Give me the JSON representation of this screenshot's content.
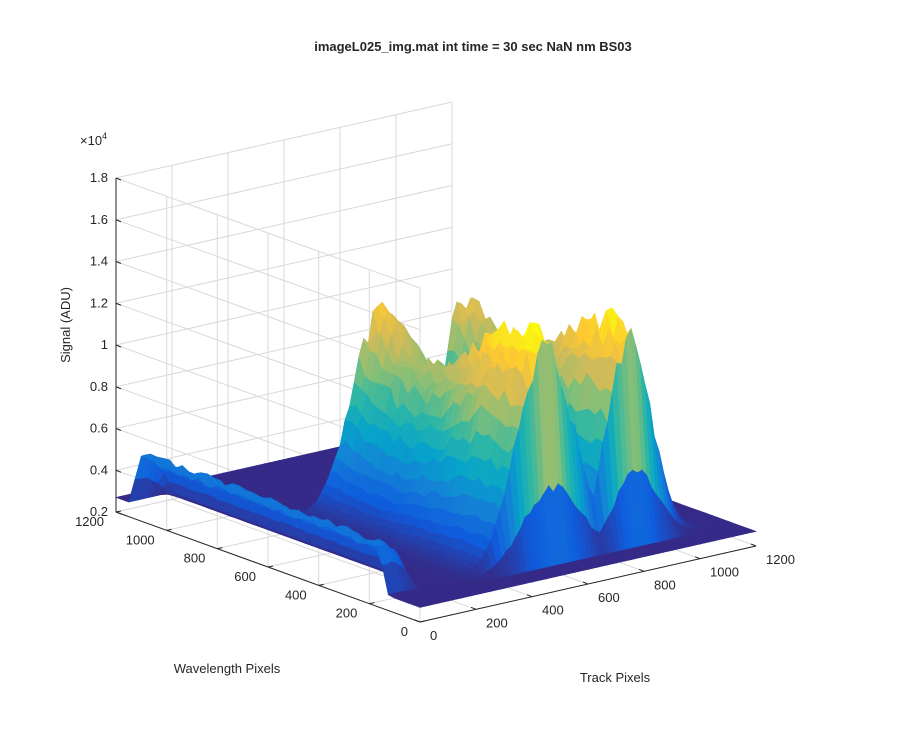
{
  "chart_data": {
    "type": "surface",
    "title": "imageL025_img.mat int time = 30 sec  NaN nm BS03",
    "xlabel": "Track Pixels",
    "ylabel": "Wavelength Pixels",
    "zlabel": "Signal (ADU)",
    "z_exponent_label": "×10",
    "z_exponent_power": "4",
    "x_ticks": [
      "0",
      "200",
      "400",
      "600",
      "800",
      "1000",
      "1200"
    ],
    "y_ticks": [
      "0",
      "200",
      "400",
      "600",
      "800",
      "1000",
      "1200"
    ],
    "z_ticks": [
      "0.2",
      "0.4",
      "0.6",
      "0.8",
      "1",
      "1.2",
      "1.4",
      "1.6",
      "1.8"
    ],
    "xlim": [
      0,
      1200
    ],
    "ylim": [
      0,
      1200
    ],
    "zlim": [
      2000,
      18000
    ],
    "baseline": 2700,
    "colormap": "parula",
    "colormap_stops": [
      "#352a87",
      "#0f5cdd",
      "#1481d6",
      "#06a4ca",
      "#2eb7a4",
      "#87bf77",
      "#d1bb59",
      "#fec832",
      "#f9fb0e"
    ],
    "features": [
      {
        "kind": "ridge",
        "track_center": 20,
        "track_width": 60,
        "wavelength_range": [
          120,
          1150
        ],
        "peak_signal": 5100
      },
      {
        "kind": "peak",
        "track_center": 560,
        "track_width": 180,
        "wavelength_range": [
          80,
          820
        ],
        "peak_signal": 13300
      },
      {
        "kind": "peak",
        "track_center": 860,
        "track_width": 140,
        "wavelength_range": [
          80,
          820
        ],
        "peak_signal": 12900
      }
    ],
    "grid": true
  }
}
